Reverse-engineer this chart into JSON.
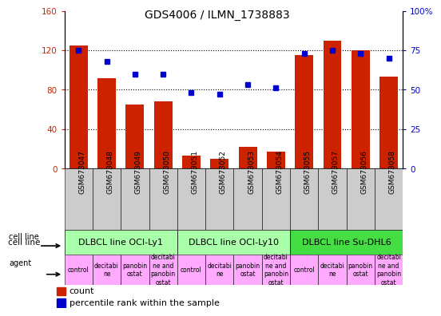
{
  "title": "GDS4006 / ILMN_1738883",
  "samples": [
    "GSM673047",
    "GSM673048",
    "GSM673049",
    "GSM673050",
    "GSM673051",
    "GSM673052",
    "GSM673053",
    "GSM673054",
    "GSM673055",
    "GSM673057",
    "GSM673056",
    "GSM673058"
  ],
  "counts": [
    125,
    92,
    65,
    68,
    13,
    10,
    22,
    17,
    115,
    130,
    120,
    93
  ],
  "percentiles": [
    75,
    68,
    60,
    60,
    48,
    47,
    53,
    51,
    73,
    75,
    73,
    70
  ],
  "bar_color": "#cc2200",
  "dot_color": "#0000cc",
  "ylim_left": [
    0,
    160
  ],
  "ylim_right": [
    0,
    100
  ],
  "yticks_left": [
    0,
    40,
    80,
    120,
    160
  ],
  "ytick_labels_left": [
    "0",
    "40",
    "80",
    "120",
    "160"
  ],
  "yticks_right": [
    0,
    25,
    50,
    75,
    100
  ],
  "ytick_labels_right": [
    "0",
    "25",
    "50",
    "75",
    "100%"
  ],
  "cell_lines": [
    {
      "label": "DLBCL line OCI-Ly1",
      "start": 0,
      "end": 4,
      "color": "#aaffaa"
    },
    {
      "label": "DLBCL line OCI-Ly10",
      "start": 4,
      "end": 8,
      "color": "#aaffaa"
    },
    {
      "label": "DLBCL line Su-DHL6",
      "start": 8,
      "end": 12,
      "color": "#44dd44"
    }
  ],
  "agents": [
    "control",
    "decitabi\nne",
    "panobin\nostat",
    "decitabi\nne and\npanobin\nostat",
    "control",
    "decitabi\nne",
    "panobin\nostat",
    "decitabi\nne and\npanobin\nostat",
    "control",
    "decitabi\nne",
    "panobin\nostat",
    "decitabi\nne and\npanobin\nostat"
  ],
  "agent_colors": [
    "#ffaaff",
    "#ffaaff",
    "#ffaaff",
    "#ffaaff",
    "#ffaaff",
    "#ffaaff",
    "#ffaaff",
    "#ffaaff",
    "#ffaaff",
    "#ffaaff",
    "#ffaaff",
    "#ffaaff"
  ],
  "sample_bg_color": "#cccccc",
  "tick_label_size": 6.5,
  "agent_fontsize": 5.5,
  "cell_line_fontsize": 8,
  "legend_fontsize": 8
}
